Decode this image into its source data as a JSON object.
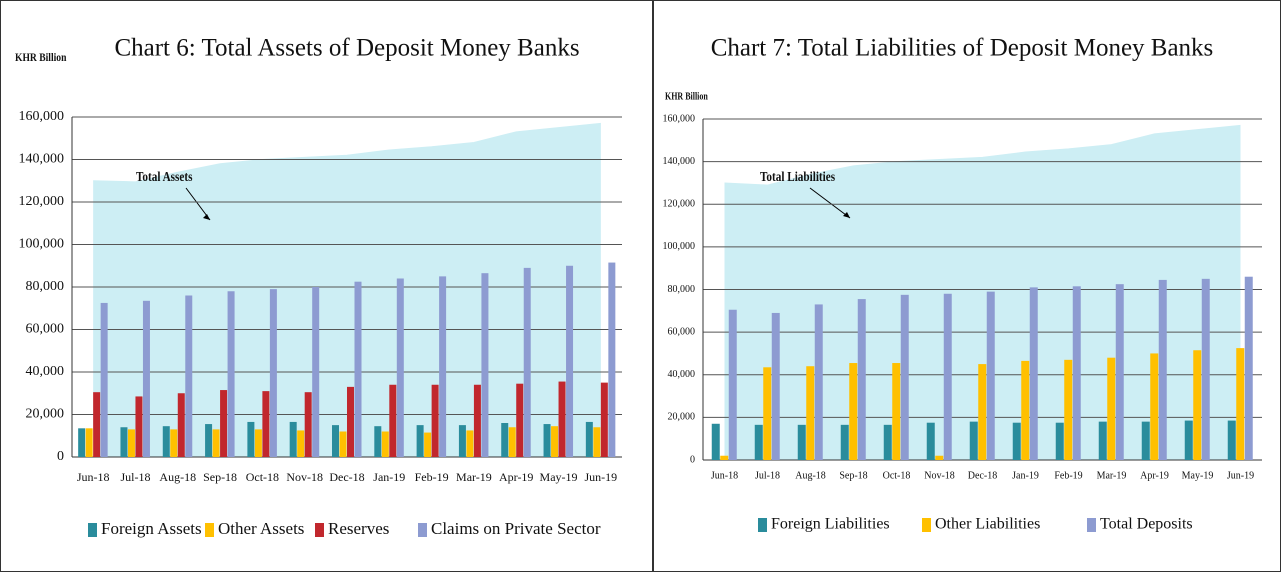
{
  "chart_data": [
    {
      "type": "bar",
      "title": "Chart 6: Total Assets of Deposit Money Banks",
      "y_label": "KHR Billion",
      "categories": [
        "Jun-18",
        "Jul-18",
        "Aug-18",
        "Sep-18",
        "Oct-18",
        "Nov-18",
        "Dec-18",
        "Jan-19",
        "Feb-19",
        "Mar-19",
        "Apr-19",
        "May-19",
        "Jun-19"
      ],
      "series": [
        {
          "name": "Total Assets",
          "type": "area",
          "color": "#cdeef4",
          "values": [
            130000,
            129500,
            134000,
            138000,
            140000,
            141000,
            142000,
            144500,
            146000,
            148000,
            153000,
            155000,
            157000
          ]
        },
        {
          "name": "Foreign Assets",
          "color": "#2a8c9c",
          "values": [
            13500,
            14000,
            14500,
            15500,
            16500,
            16500,
            15000,
            14500,
            15000,
            15000,
            16000,
            15500,
            16500
          ]
        },
        {
          "name": "Other Assets",
          "color": "#ffc000",
          "values": [
            13500,
            13000,
            13000,
            13000,
            13000,
            12500,
            12000,
            12000,
            11500,
            12500,
            14000,
            14500,
            14000
          ]
        },
        {
          "name": "Reserves",
          "color": "#c1272d",
          "values": [
            30500,
            28500,
            30000,
            31500,
            31000,
            30500,
            33000,
            34000,
            34000,
            34000,
            34500,
            35500,
            35000
          ]
        },
        {
          "name": "Claims on Private Sector",
          "color": "#8d9bd1",
          "values": [
            72500,
            73500,
            76000,
            78000,
            79000,
            80000,
            82500,
            84000,
            85000,
            86500,
            89000,
            90000,
            91500
          ]
        }
      ],
      "ylim": [
        0,
        160000
      ],
      "yticks": [
        0,
        {
          "value": 20000,
          "label": "20,000"
        },
        {
          "value": 40000,
          "label": "40,000"
        },
        {
          "value": 60000,
          "label": "60,000"
        },
        {
          "value": 80000,
          "label": "80,000"
        },
        {
          "value": 100000,
          "label": "100,000"
        },
        {
          "value": 120000,
          "label": "120,000"
        },
        {
          "value": 140000,
          "label": "140,000"
        },
        {
          "value": 160000,
          "label": "160,000"
        }
      ],
      "grid": true,
      "legend": "bottom"
    },
    {
      "type": "bar",
      "title": "Chart 7: Total Liabilities of Deposit Money Banks",
      "y_label": "KHR Billion",
      "categories": [
        "Jun-18",
        "Jul-18",
        "Aug-18",
        "Sep-18",
        "Oct-18",
        "Nov-18",
        "Dec-18",
        "Jan-19",
        "Feb-19",
        "Mar-19",
        "Apr-19",
        "May-19",
        "Jun-19"
      ],
      "series": [
        {
          "name": "Total Liabilities",
          "type": "area",
          "color": "#cdeef4",
          "values": [
            130000,
            129000,
            134000,
            138000,
            140000,
            141000,
            142000,
            144500,
            146000,
            148000,
            153000,
            155000,
            157000
          ]
        },
        {
          "name": "Foreign Liabilities",
          "color": "#2a8c9c",
          "values": [
            17000,
            16500,
            16500,
            16500,
            16500,
            17500,
            18000,
            17500,
            17500,
            18000,
            18000,
            18500,
            18500
          ]
        },
        {
          "name": "Other Liabilities",
          "color": "#ffc000",
          "values": [
            2000,
            43500,
            44000,
            45500,
            45500,
            2000,
            45000,
            46500,
            47000,
            48000,
            50000,
            51500,
            52500
          ]
        },
        {
          "name": "Total Deposits",
          "color": "#8d9bd1",
          "values": [
            70500,
            69000,
            73000,
            75500,
            77500,
            78000,
            79000,
            81000,
            81500,
            82500,
            84500,
            85000,
            86000
          ]
        }
      ],
      "ylim": [
        0,
        160000
      ],
      "yticks": [
        0,
        {
          "value": 20000,
          "label": "20,000"
        },
        {
          "value": 40000,
          "label": "40,000"
        },
        {
          "value": 60000,
          "label": "60,000"
        },
        {
          "value": 80000,
          "label": "80,000"
        },
        {
          "value": 100000,
          "label": "100,000"
        },
        {
          "value": 120000,
          "label": "120,000"
        },
        {
          "value": 140000,
          "label": "140,000"
        },
        {
          "value": 160000,
          "label": "160,000"
        }
      ],
      "grid": true,
      "legend": "bottom"
    }
  ]
}
